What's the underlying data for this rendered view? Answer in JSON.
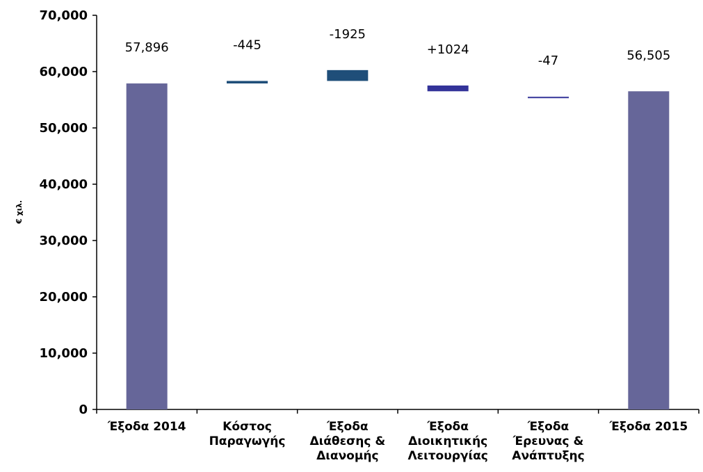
{
  "chart_data": {
    "type": "bar",
    "subtype": "waterfall",
    "ylabel": "€ χιλ.",
    "xlabel": "",
    "ylim": [
      0,
      70000
    ],
    "y_ticks": [
      "0",
      "10,000",
      "20,000",
      "30,000",
      "40,000",
      "50,000",
      "60,000",
      "70,000"
    ],
    "grid": false,
    "legend": "none",
    "categories": [
      [
        "Έξοδα 2014"
      ],
      [
        "Κόστος",
        "Παραγωγής"
      ],
      [
        "Έξοδα",
        "Διάθεσης &",
        "Διανομής"
      ],
      [
        "Έξοδα",
        "Διοικητικής",
        "Λειτουργίας"
      ],
      [
        "Έξοδα",
        "Έρευνας &",
        "Ανάπτυξης"
      ],
      [
        "Έξοδα 2015"
      ]
    ],
    "bars": [
      {
        "kind": "total",
        "start": 0,
        "end": 57896,
        "label": "57,896",
        "color": "#666699"
      },
      {
        "kind": "delta",
        "start": 57896,
        "end": 58341,
        "label": "-445",
        "color": "#1f4e79"
      },
      {
        "kind": "delta",
        "start": 58341,
        "end": 60266,
        "label": "-1925",
        "color": "#1f4e79"
      },
      {
        "kind": "delta",
        "start": 56505,
        "end": 57529,
        "label": "+1024",
        "color": "#333399"
      },
      {
        "kind": "delta",
        "start": 55480,
        "end": 55527,
        "label": "-47",
        "color": "#333399"
      },
      {
        "kind": "total",
        "start": 0,
        "end": 56505,
        "label": "56,505",
        "color": "#666699"
      }
    ]
  }
}
